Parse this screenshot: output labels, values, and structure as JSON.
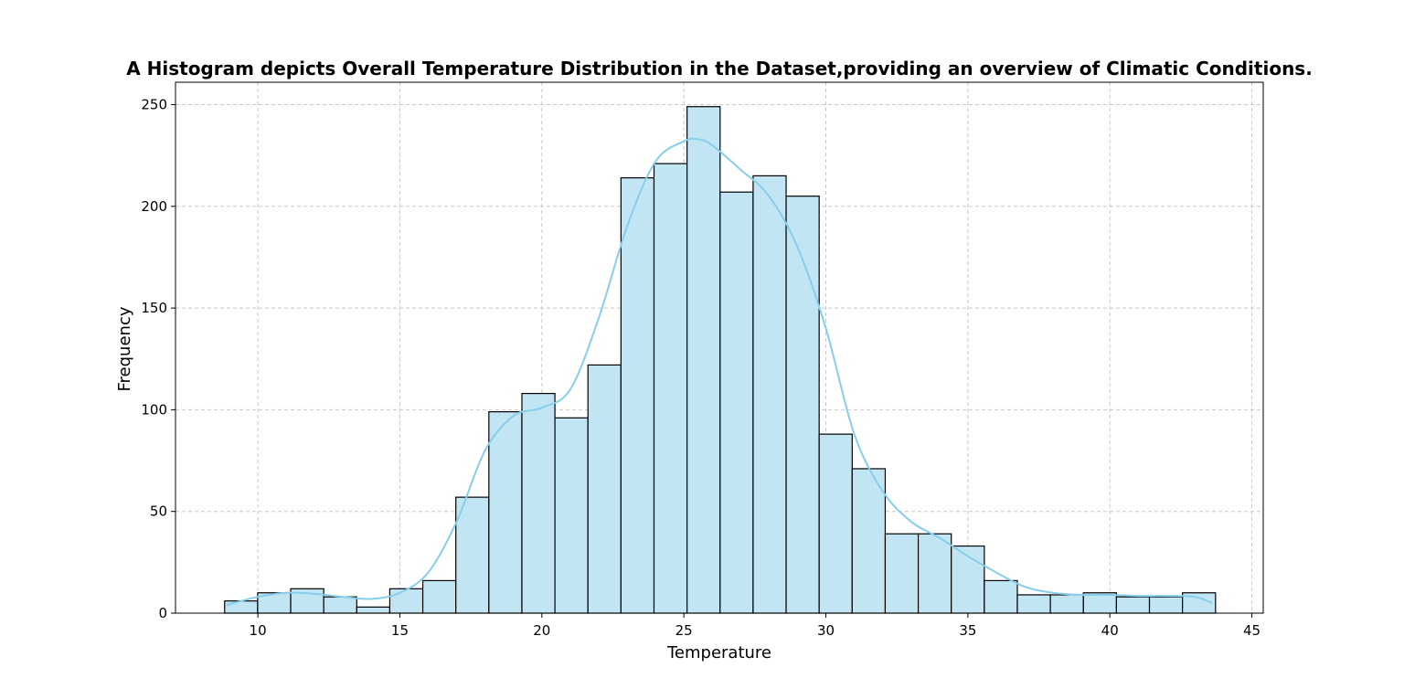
{
  "chart_data": {
    "type": "bar",
    "subtype": "histogram-with-kde",
    "title": "A Histogram depicts Overall Temperature Distribution in the Dataset,providing an overview of Climatic Conditions.",
    "xlabel": "Temperature",
    "ylabel": "Frequency",
    "xlim": [
      7.1,
      45.4
    ],
    "ylim": [
      0,
      261
    ],
    "xticks": [
      10,
      15,
      20,
      25,
      30,
      35,
      40,
      45
    ],
    "yticks": [
      0,
      50,
      100,
      150,
      200,
      250
    ],
    "grid": true,
    "bin_start": 8.83,
    "bin_width": 1.163,
    "values": [
      6,
      10,
      12,
      8,
      3,
      12,
      16,
      57,
      99,
      108,
      96,
      122,
      214,
      221,
      249,
      207,
      215,
      205,
      88,
      71,
      39,
      39,
      33,
      16,
      9,
      9,
      10,
      8,
      8,
      10
    ],
    "kde": {
      "x": [
        8.9,
        10,
        11,
        12,
        13,
        14,
        15,
        16,
        17,
        18,
        19,
        20,
        21,
        22,
        23,
        24,
        25,
        25.5,
        26,
        27,
        28,
        29,
        30,
        31,
        32,
        33,
        34,
        35,
        36,
        37,
        38,
        39,
        40,
        41,
        42,
        43,
        43.6
      ],
      "y": [
        4,
        8,
        10,
        9.5,
        8,
        7,
        10,
        20,
        45,
        80,
        97,
        101,
        110,
        145,
        190,
        222,
        232,
        233,
        230,
        218,
        205,
        180,
        140,
        88,
        60,
        45,
        37,
        28,
        20,
        13,
        10,
        9,
        9,
        8.5,
        8.5,
        8,
        5
      ]
    },
    "colors": {
      "bar_fill": "#c2e5f3",
      "bar_edge": "#000000",
      "kde_line": "#87ceeb",
      "grid": "#c8c8c8"
    }
  }
}
